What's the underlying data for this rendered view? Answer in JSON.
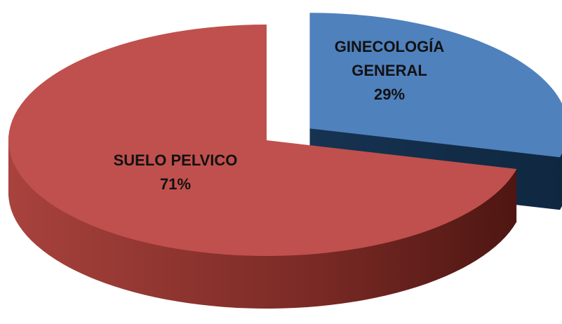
{
  "chart_data": {
    "type": "pie",
    "three_d": true,
    "categories": [
      "GINECOLOGÍA GENERAL",
      "SUELO PELVICO"
    ],
    "values": [
      29,
      71
    ],
    "value_labels": [
      "29%",
      "71%"
    ],
    "colors": [
      "#4f81bd",
      "#c0504d"
    ],
    "exploded": [
      true,
      false
    ]
  }
}
